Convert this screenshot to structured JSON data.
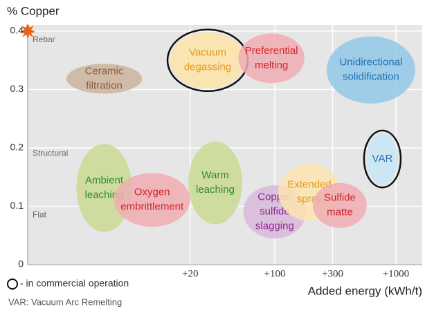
{
  "chart_data": {
    "type": "range-ellipse",
    "y_label": "% Copper",
    "x_label": "Added energy (kWh/t)",
    "x_scale": "log",
    "xlim": [
      0.91,
      1650
    ],
    "xticks": [
      {
        "value": 20,
        "label": "+20"
      },
      {
        "value": 100,
        "label": "+100"
      },
      {
        "value": 300,
        "label": "+300"
      },
      {
        "value": 1000,
        "label": "+1000"
      }
    ],
    "ylim": [
      0,
      0.4
    ],
    "yticks": [
      0,
      0.1,
      0.2,
      0.3,
      0.4
    ],
    "grid": true,
    "bands": [
      {
        "text": "Rebar",
        "y": 0.385
      },
      {
        "text": "Structural",
        "y": 0.19
      },
      {
        "text": "Flat",
        "y": 0.085
      }
    ],
    "legend": {
      "commercial": "- in commercial operation",
      "note": "VAR: Vacuum Arc Remelting"
    },
    "items": [
      {
        "label": [
          "Ceramic",
          "filtration"
        ],
        "x": [
          1.9,
          8
        ],
        "y": [
          0.293,
          0.344
        ],
        "fill": "#cbb39c",
        "color": "#8b5a3c",
        "commercial": false
      },
      {
        "label": [
          "Ambient",
          "leaching"
        ],
        "x": [
          2.3,
          6.6
        ],
        "y": [
          0.056,
          0.207
        ],
        "fill": "#c9da92",
        "color": "#2e8b2e",
        "commercial": false
      },
      {
        "label": [
          "Oxygen",
          "embrittlement"
        ],
        "x": [
          4.7,
          20
        ],
        "y": [
          0.065,
          0.157
        ],
        "fill": "#eeadb3",
        "color": "#d2232a",
        "commercial": false
      },
      {
        "label": [
          "Warm",
          "leaching"
        ],
        "x": [
          19.3,
          53.8
        ],
        "y": [
          0.069,
          0.211
        ],
        "fill": "#c9da92",
        "color": "#2e8b2e",
        "commercial": false
      },
      {
        "label": [
          "Vacuum",
          "degassing"
        ],
        "x": [
          13.7,
          56.8
        ],
        "y": [
          0.302,
          0.398
        ],
        "fill": "#fde3a7",
        "color": "#e39a1a",
        "commercial": true
      },
      {
        "label": [
          "Preferential",
          "melting"
        ],
        "x": [
          50,
          176
        ],
        "y": [
          0.311,
          0.396
        ],
        "fill": "#eeadb3",
        "color": "#d2232a",
        "commercial": false
      },
      {
        "label": [
          "Copper",
          "sulfide",
          "slagging"
        ],
        "x": [
          55,
          181
        ],
        "y": [
          0.045,
          0.136
        ],
        "fill": "#d8b8da",
        "color": "#8e2a8e",
        "commercial": false
      },
      {
        "label": [
          "Extended",
          "spray"
        ],
        "x": [
          107,
          349
        ],
        "y": [
          0.075,
          0.173
        ],
        "fill": "#fde3b0",
        "color": "#e39a1a",
        "commercial": false
      },
      {
        "label": [
          "Sulfide",
          "matte"
        ],
        "x": [
          206,
          575
        ],
        "y": [
          0.063,
          0.14
        ],
        "fill": "#eeadb3",
        "color": "#d2232a",
        "commercial": false
      },
      {
        "label": [
          "Unidirectional",
          "solidification"
        ],
        "x": [
          268,
          1445
        ],
        "y": [
          0.276,
          0.391
        ],
        "fill": "#92c8e8",
        "color": "#1e6fb5",
        "commercial": false
      },
      {
        "label": [
          "VAR"
        ],
        "x": [
          575,
          1040
        ],
        "y": [
          0.137,
          0.225
        ],
        "fill": "#c8e5f4",
        "color": "#1e6fb5",
        "commercial": true
      }
    ]
  }
}
